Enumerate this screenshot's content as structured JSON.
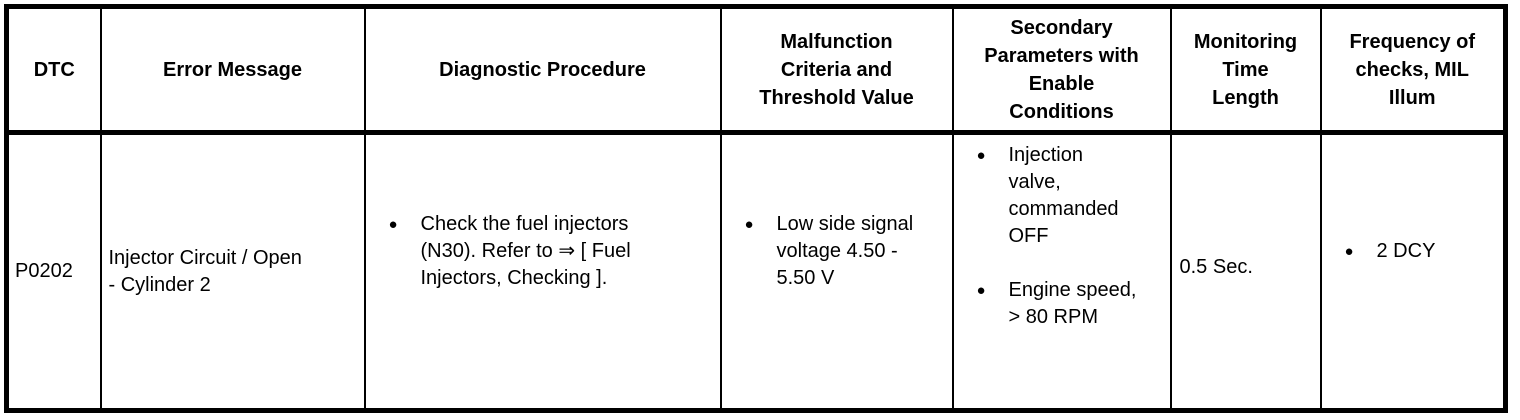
{
  "colors": {
    "border": "#000000",
    "text": "#000000",
    "background": "#ffffff"
  },
  "icons": {
    "bullet": "●"
  },
  "table": {
    "headers": [
      "DTC",
      "Error Message",
      "Diagnostic Procedure",
      "Malfunction\nCriteria and\nThreshold Value",
      "Secondary\nParameters with\nEnable\nConditions",
      "Monitoring\nTime\nLength",
      "Frequency of\nchecks, MIL\nIllum"
    ],
    "row": {
      "dtc": "P0202",
      "error_message": "Injector Circuit / Open\n- Cylinder 2",
      "diagnostic_procedure": [
        "Check the fuel injectors\n(N30). Refer to ⇒ [ Fuel\nInjectors, Checking ]."
      ],
      "malfunction_criteria": [
        "Low side signal\nvoltage 4.50 -\n5.50 V"
      ],
      "secondary_parameters": [
        "Injection\nvalve,\ncommanded\nOFF",
        "Engine speed,\n> 80 RPM"
      ],
      "monitoring_time": "0.5 Sec.",
      "frequency": [
        "2 DCY"
      ]
    }
  }
}
